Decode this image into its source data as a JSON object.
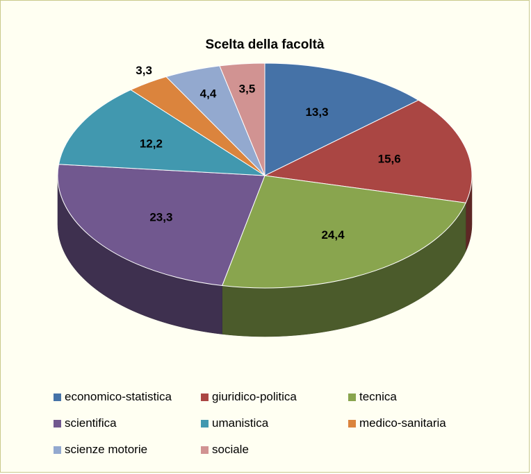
{
  "chart_data": {
    "type": "pie",
    "title": "Scelta della facoltà",
    "legend_position": "bottom",
    "slices": [
      {
        "name": "economico-statistica",
        "value": 13.3,
        "label": "13,3",
        "color": "#4572A7"
      },
      {
        "name": "giuridico-politica",
        "value": 15.6,
        "label": "15,6",
        "color": "#AA4643"
      },
      {
        "name": "tecnica",
        "value": 24.4,
        "label": "24,4",
        "color": "#89A54E"
      },
      {
        "name": "scientifica",
        "value": 23.3,
        "label": "23,3",
        "color": "#71588F"
      },
      {
        "name": "umanistica",
        "value": 12.2,
        "label": "12,2",
        "color": "#4198AF"
      },
      {
        "name": "medico-sanitaria",
        "value": 3.3,
        "label": "3,3",
        "color": "#DB843D"
      },
      {
        "name": "scienze motorie",
        "value": 4.4,
        "label": "4,4",
        "color": "#93A9CF"
      },
      {
        "name": "sociale",
        "value": 3.5,
        "label": "3,5",
        "color": "#D19392"
      }
    ]
  }
}
